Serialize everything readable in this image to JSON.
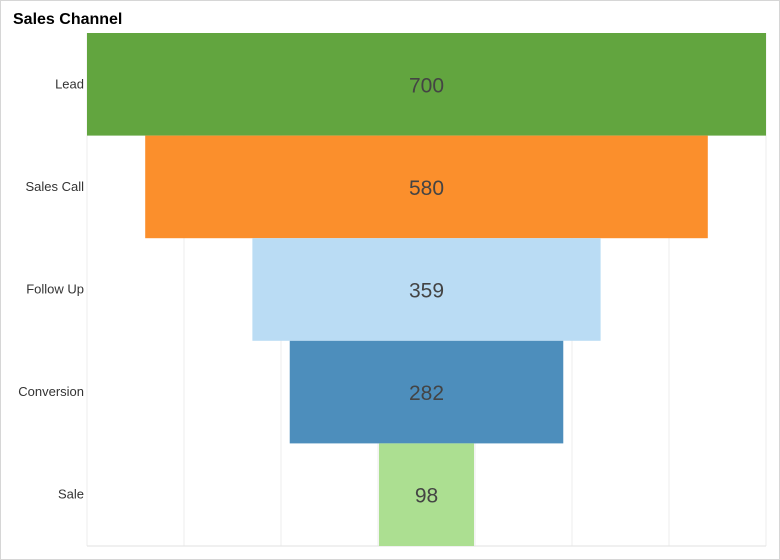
{
  "chart_data": {
    "type": "bar",
    "title": "Sales Channel",
    "categories": [
      "Lead",
      "Sales Call",
      "Follow Up",
      "Conversion",
      "Sale"
    ],
    "values": [
      700,
      580,
      359,
      282,
      98
    ],
    "colors": [
      "#62a53f",
      "#fb8f2c",
      "#badcf4",
      "#4d8ebc",
      "#acdf91"
    ],
    "xlim": [
      0,
      700
    ],
    "grid": true
  }
}
